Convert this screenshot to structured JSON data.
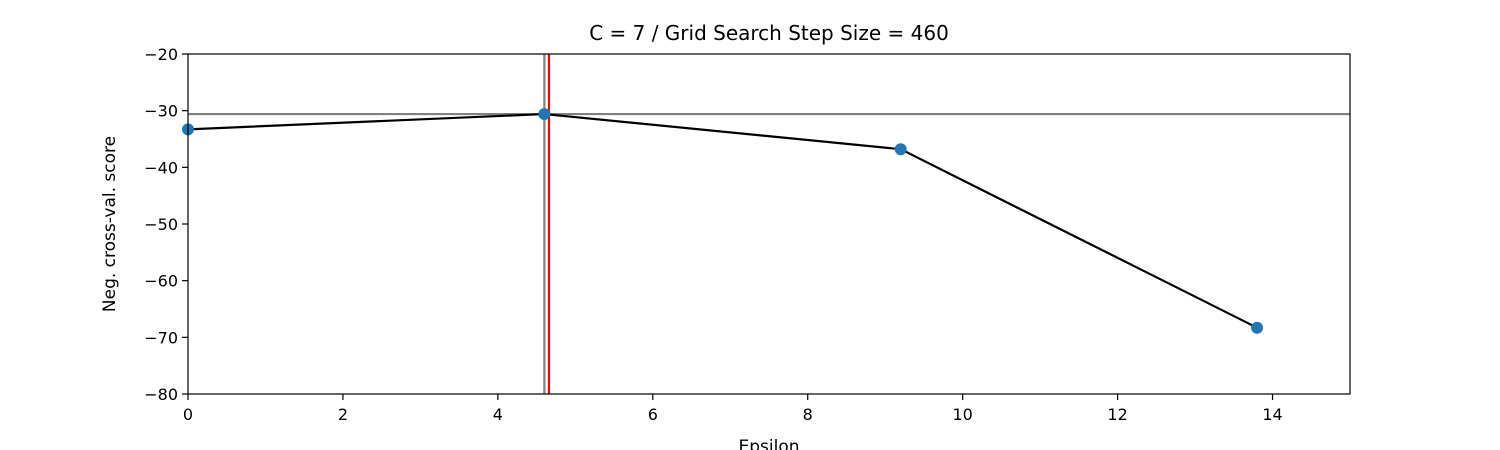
{
  "chart_data": {
    "type": "scatter",
    "title": "C = 7 / Grid Search Step Size = 460",
    "xlabel": "Epsilon",
    "ylabel": "Neg. cross-val. score",
    "xlim": [
      0,
      15
    ],
    "ylim": [
      -80,
      -20
    ],
    "xticks": [
      0,
      2,
      4,
      6,
      8,
      10,
      12,
      14
    ],
    "yticks": [
      -80,
      -70,
      -60,
      -50,
      -40,
      -30,
      -20
    ],
    "grid": false,
    "series": [
      {
        "x": [
          0,
          4.6,
          9.2,
          13.8
        ],
        "y": [
          -33.3,
          -30.6,
          -36.8,
          -68.3
        ],
        "marker_color": "#1f77b4",
        "line_color": "#000000"
      }
    ],
    "reference_lines": [
      {
        "orientation": "horizontal",
        "value": -30.6,
        "color": "#808080"
      },
      {
        "orientation": "vertical",
        "value": 4.6,
        "color": "#808080"
      },
      {
        "orientation": "vertical",
        "value": 4.66,
        "color": "#ff0000"
      }
    ]
  }
}
